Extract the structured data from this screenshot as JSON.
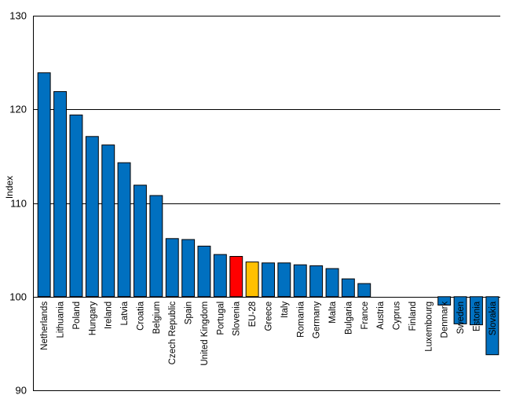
{
  "chart_data": {
    "type": "bar",
    "title": "",
    "xlabel": "",
    "ylabel": "Index",
    "ylim": [
      90,
      130
    ],
    "yticks": [
      90,
      100,
      110,
      120,
      130
    ],
    "baseline": 100,
    "grid": true,
    "legend": "none",
    "colors": {
      "default": "#0070C0",
      "highlight": "#FF0000",
      "reference": "#FFC000"
    },
    "categories": [
      "Netherlands",
      "Lithuania",
      "Poland",
      "Hungary",
      "Ireland",
      "Latvia",
      "Croatia",
      "Belgium",
      "Czech Republic",
      "Spain",
      "United Kingdom",
      "Portugal",
      "Slovenia",
      "EU-28",
      "Greece",
      "Italy",
      "Romania",
      "Germany",
      "Malta",
      "Bulgaria",
      "France",
      "Austria",
      "Cyprus",
      "Finland",
      "Luxembourg",
      "Denmark",
      "Sweden",
      "Estonia",
      "Slovakia"
    ],
    "values": [
      123.9,
      121.9,
      119.4,
      117.1,
      116.2,
      114.3,
      111.9,
      110.8,
      106.2,
      106.1,
      105.4,
      104.5,
      104.3,
      103.7,
      103.6,
      103.6,
      103.4,
      103.3,
      103.0,
      101.9,
      101.4,
      100.0,
      100.0,
      100.0,
      100.0,
      99.1,
      97.1,
      97.0,
      93.8
    ],
    "bar_colors": [
      "default",
      "default",
      "default",
      "default",
      "default",
      "default",
      "default",
      "default",
      "default",
      "default",
      "default",
      "default",
      "highlight",
      "reference",
      "default",
      "default",
      "default",
      "default",
      "default",
      "default",
      "default",
      "default",
      "default",
      "default",
      "default",
      "default",
      "default",
      "default",
      "default"
    ]
  }
}
